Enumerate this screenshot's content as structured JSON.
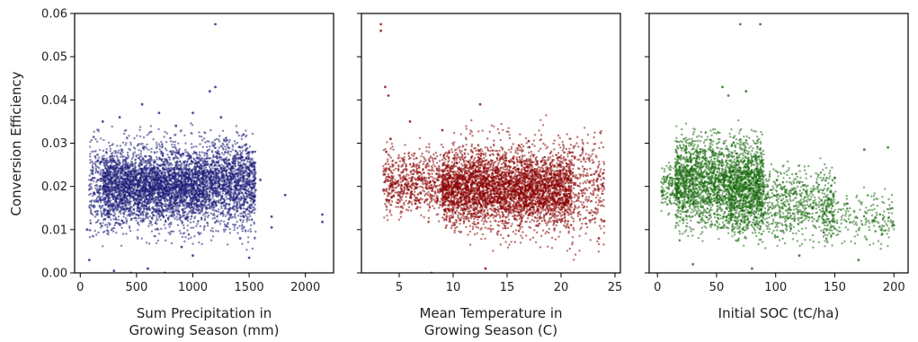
{
  "figure": {
    "ylabel": "Conversion Efficiency"
  },
  "chart_data": [
    {
      "type": "scatter",
      "xlabel_lines": [
        "Sum Precipitation in",
        "Growing Season (mm)"
      ],
      "ylabel": "Conversion Efficiency",
      "xlim": [
        -50,
        2250
      ],
      "ylim": [
        0,
        0.06
      ],
      "xticks": [
        0,
        500,
        1000,
        1500,
        2000
      ],
      "yticks": [
        0.0,
        0.01,
        0.02,
        0.03,
        0.04,
        0.05,
        0.06
      ],
      "ytick_labels": [
        "0.00",
        "0.01",
        "0.02",
        "0.03",
        "0.04",
        "0.05",
        "0.06"
      ],
      "color": "#1f1f7a",
      "series": [
        {
          "points": [
            [
              450,
              0.0
            ],
            [
              600,
              0.001
            ],
            [
              750,
              0.0
            ],
            [
              1200,
              0.0575
            ],
            [
              1200,
              0.043
            ],
            [
              1150,
              0.042
            ],
            [
              1250,
              0.036
            ],
            [
              1000,
              0.037
            ],
            [
              550,
              0.039
            ],
            [
              2150,
              0.0135
            ],
            [
              2150,
              0.0118
            ],
            [
              1820,
              0.018
            ],
            [
              1700,
              0.013
            ],
            [
              1700,
              0.0105
            ],
            [
              1600,
              0.0215
            ],
            [
              900,
              0.006
            ],
            [
              1000,
              0.004
            ],
            [
              1420,
              0.008
            ],
            [
              1500,
              0.0035
            ],
            [
              80,
              0.003
            ],
            [
              300,
              0.0005
            ],
            [
              1450,
              0.032
            ],
            [
              1530,
              0.028
            ],
            [
              1520,
              0.025
            ],
            [
              60,
              0.01
            ],
            [
              200,
              0.035
            ],
            [
              350,
              0.036
            ],
            [
              700,
              0.037
            ],
            [
              850,
              0.034
            ]
          ],
          "clusters": [
            {
              "x": [
                80,
                1560
              ],
              "y": [
                0.004,
                0.036
              ],
              "n": 2600
            },
            {
              "x": [
                200,
                1100
              ],
              "y": [
                0.01,
                0.03
              ],
              "n": 2200
            },
            {
              "x": [
                1100,
                1560
              ],
              "y": [
                0.01,
                0.034
              ],
              "n": 700
            }
          ]
        }
      ]
    },
    {
      "type": "scatter",
      "xlabel_lines": [
        "Mean Temperature in",
        "Growing Season (C)"
      ],
      "ylabel": "",
      "xlim": [
        1.5,
        25.5
      ],
      "ylim": [
        0,
        0.06
      ],
      "xticks": [
        5,
        10,
        15,
        20,
        25
      ],
      "yticks": [
        0.0,
        0.01,
        0.02,
        0.03,
        0.04,
        0.05,
        0.06
      ],
      "color": "#8b0000",
      "series": [
        {
          "points": [
            [
              3.3,
              0.0575
            ],
            [
              3.3,
              0.056
            ],
            [
              3.7,
              0.043
            ],
            [
              4.0,
              0.041
            ],
            [
              12.5,
              0.039
            ],
            [
              8.0,
              0.0
            ],
            [
              13.0,
              0.001
            ],
            [
              24.0,
              0.012
            ],
            [
              23.5,
              0.008
            ],
            [
              22.0,
              0.0285
            ],
            [
              4.2,
              0.031
            ],
            [
              3.8,
              0.028
            ],
            [
              6.0,
              0.035
            ],
            [
              9.0,
              0.033
            ],
            [
              17,
              0.0305
            ]
          ],
          "clusters": [
            {
              "x": [
                9,
                21
              ],
              "y": [
                0.008,
                0.031
              ],
              "n": 3000
            },
            {
              "x": [
                3.5,
                10
              ],
              "y": [
                0.01,
                0.032
              ],
              "n": 800
            },
            {
              "x": [
                10,
                24
              ],
              "y": [
                0.002,
                0.038
              ],
              "n": 1400
            }
          ]
        }
      ]
    },
    {
      "type": "scatter",
      "xlabel_lines": [
        "Initial SOC (tC/ha)"
      ],
      "ylabel": "",
      "xlim": [
        -7,
        212
      ],
      "ylim": [
        0,
        0.06
      ],
      "xticks": [
        0,
        50,
        100,
        150,
        200
      ],
      "yticks": [
        0.0,
        0.01,
        0.02,
        0.03,
        0.04,
        0.05,
        0.06
      ],
      "color": "#1a6b0f",
      "series": [
        {
          "points": [
            [
              70,
              0.0575
            ],
            [
              87,
              0.0575
            ],
            [
              55,
              0.043
            ],
            [
              75,
              0.042
            ],
            [
              60,
              0.041
            ],
            [
              175,
              0.0285
            ],
            [
              195,
              0.029
            ],
            [
              150,
              0.022
            ],
            [
              160,
              0.016
            ],
            [
              200,
              0.011
            ],
            [
              190,
              0.009
            ],
            [
              5,
              0.018
            ],
            [
              8,
              0.022
            ],
            [
              30,
              0.002
            ],
            [
              80,
              0.001
            ],
            [
              120,
              0.004
            ],
            [
              170,
              0.003
            ]
          ],
          "clusters": [
            {
              "x": [
                15,
                90
              ],
              "y": [
                0.006,
                0.036
              ],
              "n": 2600
            },
            {
              "x": [
                60,
                150
              ],
              "y": [
                0.004,
                0.028
              ],
              "n": 1000
            },
            {
              "x": [
                140,
                200
              ],
              "y": [
                0.004,
                0.022
              ],
              "n": 250
            },
            {
              "x": [
                3,
                20
              ],
              "y": [
                0.012,
                0.028
              ],
              "n": 150
            }
          ]
        }
      ]
    }
  ]
}
